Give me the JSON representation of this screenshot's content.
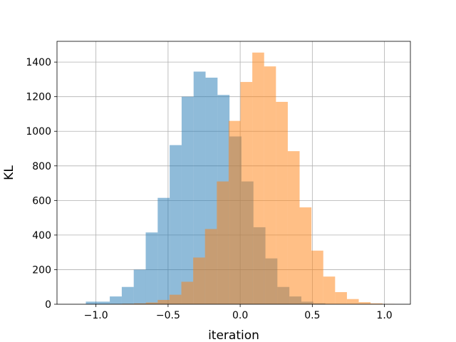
{
  "chart_data": {
    "type": "bar",
    "title": "",
    "xlabel": "iteration",
    "ylabel": "KL",
    "xlim": [
      -1.27,
      1.18
    ],
    "ylim": [
      0,
      1520
    ],
    "grid": true,
    "xticks": [
      -1.0,
      -0.5,
      0.0,
      0.5,
      1.0
    ],
    "xtick_labels": [
      "−1.0",
      "−0.5",
      "0.0",
      "0.5",
      "1.0"
    ],
    "yticks": [
      0,
      200,
      400,
      600,
      800,
      1000,
      1200,
      1400
    ],
    "ytick_labels": [
      "0",
      "200",
      "400",
      "600",
      "800",
      "1000",
      "1200",
      "1400"
    ],
    "series": [
      {
        "color": "#1f77b4",
        "opacity": 0.5,
        "bin_edges": [
          -1.07,
          -0.987,
          -0.904,
          -0.821,
          -0.738,
          -0.655,
          -0.572,
          -0.489,
          -0.406,
          -0.323,
          -0.24,
          -0.157,
          -0.074,
          0.009,
          0.092,
          0.175,
          0.258,
          0.341,
          0.424,
          0.507,
          0.59
        ],
        "counts": [
          15,
          15,
          45,
          100,
          200,
          415,
          615,
          920,
          1200,
          1345,
          1310,
          1210,
          970,
          710,
          445,
          265,
          100,
          45,
          15,
          5
        ]
      },
      {
        "color": "#ff7f0e",
        "opacity": 0.5,
        "bin_edges": [
          -0.9,
          -0.818,
          -0.736,
          -0.654,
          -0.572,
          -0.49,
          -0.408,
          -0.326,
          -0.244,
          -0.162,
          -0.08,
          0.002,
          0.084,
          0.166,
          0.248,
          0.33,
          0.412,
          0.494,
          0.576,
          0.658,
          0.74,
          0.822,
          0.904,
          0.986,
          1.068
        ],
        "counts": [
          2,
          3,
          5,
          10,
          25,
          55,
          130,
          270,
          435,
          710,
          1060,
          1285,
          1455,
          1375,
          1170,
          885,
          560,
          310,
          160,
          70,
          30,
          12,
          5,
          2
        ]
      }
    ]
  }
}
